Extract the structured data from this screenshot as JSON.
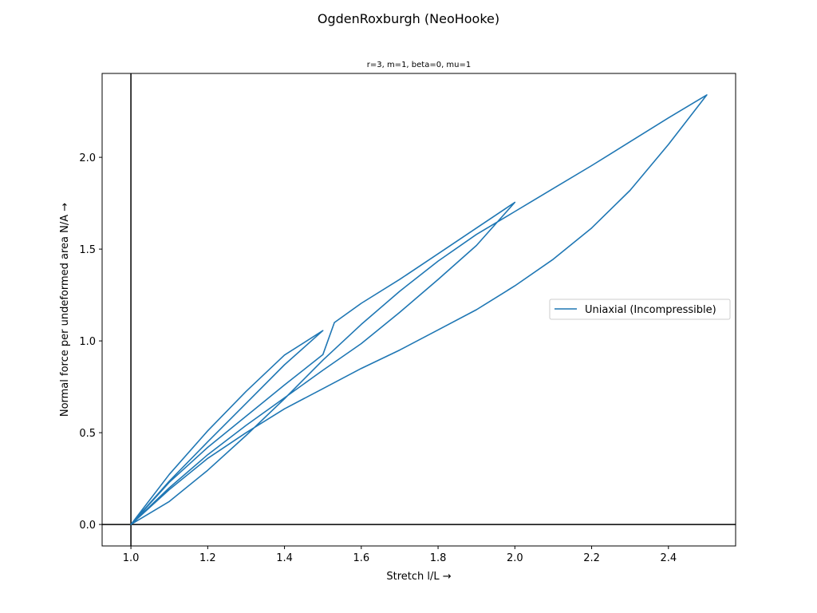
{
  "chart_data": {
    "type": "line",
    "suptitle": "OgdenRoxburgh (NeoHooke)",
    "title": "r=3, m=1, beta=0, mu=1",
    "xlabel": "Stretch l/L →",
    "ylabel": "Normal force per undeformed area N/A →",
    "xlim": [
      0.925,
      2.575
    ],
    "ylim": [
      -0.117,
      2.457
    ],
    "xticks": [
      1.0,
      1.2,
      1.4,
      1.6,
      1.8,
      2.0,
      2.2,
      2.4
    ],
    "xtick_labels": [
      "1.0",
      "1.2",
      "1.4",
      "1.6",
      "1.8",
      "2.0",
      "2.2",
      "2.4"
    ],
    "yticks": [
      0.0,
      0.5,
      1.0,
      1.5,
      2.0
    ],
    "ytick_labels": [
      "0.0",
      "0.5",
      "1.0",
      "1.5",
      "2.0"
    ],
    "grid": false,
    "legend": {
      "position": "center-right"
    },
    "reference_lines": {
      "x": 1.0,
      "y": 0.0,
      "color": "#000000"
    },
    "series": [
      {
        "name": "Uniaxial (Incompressible)",
        "color": "#1f77b4",
        "x": [
          1.0,
          1.1,
          1.2,
          1.3,
          1.4,
          1.5,
          1.4,
          1.3,
          1.2,
          1.1,
          1.0,
          1.1,
          1.2,
          1.3,
          1.4,
          1.5,
          1.53,
          1.6,
          1.7,
          1.8,
          1.9,
          2.0,
          1.9,
          1.8,
          1.7,
          1.6,
          1.5,
          1.4,
          1.3,
          1.2,
          1.1,
          1.0,
          1.1,
          1.2,
          1.3,
          1.4,
          1.5,
          1.6,
          1.7,
          1.8,
          1.9,
          2.0,
          2.1,
          2.2,
          2.3,
          2.4,
          2.5,
          2.4,
          2.3,
          2.2,
          2.1,
          2.0,
          1.9,
          1.8,
          1.7,
          1.6,
          1.5,
          1.4,
          1.3,
          1.2,
          1.1,
          1.0
        ],
        "y": [
          0.0,
          0.273,
          0.51,
          0.725,
          0.923,
          1.056,
          0.87,
          0.66,
          0.45,
          0.236,
          0.0,
          0.23,
          0.42,
          0.59,
          0.76,
          0.925,
          1.1,
          1.205,
          1.335,
          1.475,
          1.615,
          1.755,
          1.52,
          1.335,
          1.155,
          0.985,
          0.84,
          0.69,
          0.54,
          0.38,
          0.2,
          0.0,
          0.19,
          0.36,
          0.5,
          0.63,
          0.74,
          0.85,
          0.95,
          1.06,
          1.17,
          1.3,
          1.445,
          1.615,
          1.82,
          2.07,
          2.34,
          2.215,
          2.085,
          1.955,
          1.83,
          1.705,
          1.58,
          1.435,
          1.27,
          1.09,
          0.895,
          0.685,
          0.485,
          0.295,
          0.125,
          0.0
        ]
      }
    ]
  }
}
